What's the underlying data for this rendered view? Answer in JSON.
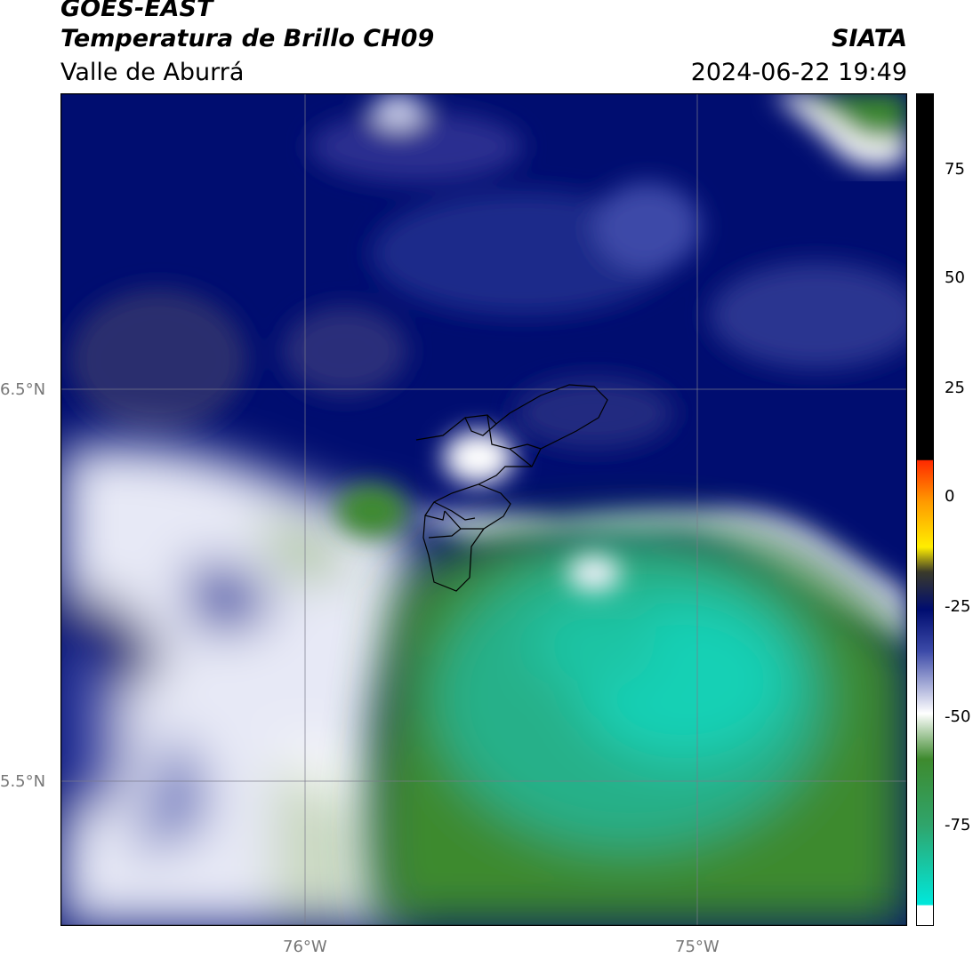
{
  "header": {
    "satellite": "GOES-EAST",
    "product": "Temperatura de Brillo CH09",
    "region": "Valle de Aburrá",
    "agency": "SIATA",
    "datetime": "2024-06-22 19:49"
  },
  "map": {
    "gridlines": true,
    "lat_labels": [
      "6.5°N",
      "5.5°N"
    ],
    "lon_labels": [
      "76°W",
      "75°W"
    ]
  },
  "colorbar": {
    "ticks": [
      "75",
      "50",
      "25",
      "0",
      "-25",
      "-50",
      "-75"
    ],
    "colors": {
      "black": "#000000",
      "red": "#ff2a00",
      "orange": "#ff9900",
      "yellow": "#ffee00",
      "dark_gray": "#333333",
      "navy": "#000d70",
      "blue": "#3c4aa8",
      "light": "#ffffff",
      "green": "#3e8a2e",
      "teal": "#15d0b5",
      "cyan": "#00e8dc"
    }
  }
}
